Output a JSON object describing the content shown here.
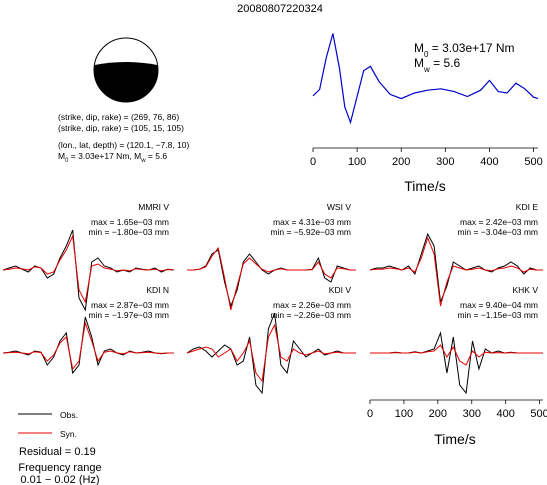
{
  "title": "20080807220324",
  "mechanism": {
    "line1": "(strike, dip, rake) = (269, 76, 86)",
    "line2": "(strike, dip, rake) = (105, 15, 105)",
    "line3": "(lon., lat, depth) = (120.1, −7.8, 10)",
    "line4_m0": "M",
    "line4_rest": " = 3.03e+17 Nm, M",
    "line4_mw": " = 5.6"
  },
  "stf": {
    "m0_label": "M",
    "m0_sub": "0",
    "m0_value": " = 3.03e+17 Nm",
    "mw_label": "M",
    "mw_sub": "w",
    "mw_value": " = 5.6",
    "xlabel": "Time/s"
  },
  "bottom_axis": {
    "xlabel": "Time/s"
  },
  "legend": {
    "obs": "Obs.",
    "syn": "Syn."
  },
  "residual": "Residual = 0.19",
  "freq_title": "Frequency range",
  "freq_range": "0.01 − 0.02 (Hz)",
  "colors": {
    "obs": "#000000",
    "syn": "#e60000",
    "stf": "#0000cc",
    "beachball_fill": "#000000"
  },
  "chart_data": [
    {
      "type": "line",
      "name": "source time function",
      "xlabel": "Time/s",
      "ylabel": "",
      "xlim": [
        0,
        510
      ],
      "xticks": [
        0,
        100,
        200,
        300,
        400,
        500
      ],
      "x": [
        0,
        15,
        30,
        45,
        60,
        72,
        85,
        100,
        115,
        130,
        150,
        175,
        200,
        230,
        260,
        290,
        320,
        350,
        380,
        400,
        420,
        440,
        460,
        480,
        500,
        510
      ],
      "y": [
        0.06,
        0.15,
        0.6,
        0.95,
        0.45,
        -0.1,
        -0.32,
        0.05,
        0.42,
        0.48,
        0.26,
        0.08,
        0.02,
        0.1,
        0.14,
        0.16,
        0.12,
        0.05,
        0.14,
        0.28,
        0.12,
        0.1,
        0.24,
        0.16,
        0.04,
        0.02
      ]
    },
    {
      "type": "line",
      "name": "waveform comparison",
      "xlabel": "Time/s",
      "xlim": [
        0,
        510
      ],
      "xticks": [
        0,
        100,
        200,
        300,
        400,
        500
      ],
      "stations": [
        {
          "label": "MMRI V",
          "max": "max = 1.65e−03 mm",
          "min": "min = −1.80e−03 mm",
          "obs": [
            0,
            0.05,
            0.1,
            0.02,
            -0.05,
            0.1,
            0.05,
            -0.2,
            -0.1,
            0.3,
            0.6,
            1.0,
            -0.7,
            -1.0,
            0.2,
            0.3,
            0.1,
            0.05,
            -0.05,
            0,
            -0.05,
            0.05,
            0.02,
            0,
            0.05,
            -0.05,
            0.02,
            0
          ],
          "syn": [
            0,
            0.02,
            0.05,
            0.03,
            0,
            0.08,
            0.05,
            -0.1,
            -0.05,
            0.25,
            0.5,
            0.85,
            -0.5,
            -0.8,
            0.1,
            0.15,
            0.05,
            0.02,
            -0.02,
            0,
            -0.02,
            0.03,
            0.01,
            0,
            0.02,
            -0.02,
            0.01,
            0
          ]
        },
        {
          "label": "WSI V",
          "max": "max = 4.31e−03 mm",
          "min": "min = −5.92e−03 mm",
          "obs": [
            0,
            0,
            0.02,
            0.1,
            0.4,
            0.5,
            -0.3,
            -0.9,
            -0.5,
            0.2,
            0.4,
            0.2,
            0,
            -0.1,
            0,
            0.05,
            0,
            0,
            0,
            0,
            0.02,
            0.3,
            -0.2,
            -0.3,
            0.1,
            0.05,
            0,
            0
          ],
          "syn": [
            0,
            0,
            0.02,
            0.08,
            0.35,
            0.55,
            -0.2,
            -1.0,
            -0.4,
            0.15,
            0.3,
            0.15,
            0.02,
            -0.05,
            0,
            0.03,
            0,
            0,
            0,
            0,
            0.01,
            0.2,
            -0.1,
            -0.2,
            0.05,
            0.03,
            0,
            0
          ]
        },
        {
          "label": "KDI E",
          "max": "max = 2.42e−03 mm",
          "min": "min = −3.04e−03 mm",
          "obs": [
            0,
            0.05,
            0.05,
            0.1,
            0.05,
            0,
            0.1,
            -0.1,
            0.4,
            0.9,
            0.6,
            -0.8,
            -0.4,
            0.2,
            0.1,
            0,
            0.05,
            0.1,
            0,
            -0.05,
            0.05,
            0.1,
            0.2,
            0.1,
            -0.1,
            0.05,
            0,
            0
          ],
          "syn": [
            0,
            0.02,
            0.02,
            0.05,
            0.03,
            0,
            0.05,
            -0.05,
            0.3,
            0.8,
            0.4,
            -0.9,
            -0.3,
            0.1,
            0.05,
            0,
            0.02,
            0.05,
            0,
            -0.02,
            0.03,
            0.05,
            0.1,
            0.05,
            -0.05,
            0.02,
            0,
            0
          ]
        },
        {
          "label": "KDI N",
          "max": "max = 2.87e−03 mm",
          "min": "min = −1.97e−03 mm",
          "obs": [
            0,
            0.02,
            0.05,
            0,
            -0.05,
            0.05,
            0.02,
            -0.3,
            -0.1,
            0.3,
            0.5,
            -0.5,
            -0.3,
            0.9,
            0.4,
            -0.3,
            0.05,
            0.1,
            0,
            -0.05,
            0.05,
            0,
            0.02,
            0.05,
            0,
            -0.02,
            0,
            0
          ],
          "syn": [
            0,
            0.01,
            0.02,
            0,
            -0.02,
            0.03,
            0.01,
            -0.2,
            -0.05,
            0.25,
            0.4,
            -0.4,
            -0.2,
            0.75,
            0.3,
            -0.2,
            0.02,
            0.05,
            0,
            -0.02,
            0.03,
            0,
            0.01,
            0.02,
            0,
            -0.01,
            0,
            0
          ]
        },
        {
          "label": "KDI V",
          "max": "max = 2.26e−03 mm",
          "min": "min = −2.26e−03 mm",
          "obs": [
            0,
            0.1,
            0.15,
            0.05,
            -0.1,
            0.05,
            0.2,
            0.1,
            -0.3,
            -0.2,
            0.4,
            -0.8,
            -1.0,
            0.6,
            1.0,
            -0.3,
            -0.5,
            0.3,
            0.1,
            -0.1,
            0,
            0.1,
            -0.05,
            0,
            0.05,
            0,
            0,
            0
          ],
          "syn": [
            0,
            0.05,
            0.1,
            0.15,
            0.1,
            -0.1,
            0,
            0.1,
            -0.2,
            0,
            0.3,
            -0.5,
            -0.7,
            0.4,
            0.7,
            -0.1,
            -0.2,
            0.1,
            0,
            -0.05,
            0,
            0.05,
            -0.02,
            0,
            0.02,
            0,
            0,
            0
          ]
        },
        {
          "label": "KHK V",
          "max": "max = 9.40e−04 mm",
          "min": "min = −1.15e−03 mm",
          "obs": [
            0,
            0,
            0,
            0,
            0.02,
            0,
            0,
            0.03,
            0,
            0.05,
            0.1,
            0.5,
            -0.5,
            0.4,
            -0.8,
            -1.0,
            0.3,
            -0.4,
            0.1,
            0,
            0.05,
            0,
            0.02,
            0,
            0,
            0,
            0,
            0
          ],
          "syn": [
            0,
            0,
            0,
            0,
            0.01,
            0,
            0,
            0.02,
            0,
            0.03,
            0.05,
            0.2,
            -0.1,
            0.15,
            -0.2,
            -0.3,
            0.05,
            -0.1,
            0.02,
            0,
            0.01,
            0,
            0.01,
            0,
            0,
            0,
            0,
            0
          ]
        }
      ]
    }
  ]
}
